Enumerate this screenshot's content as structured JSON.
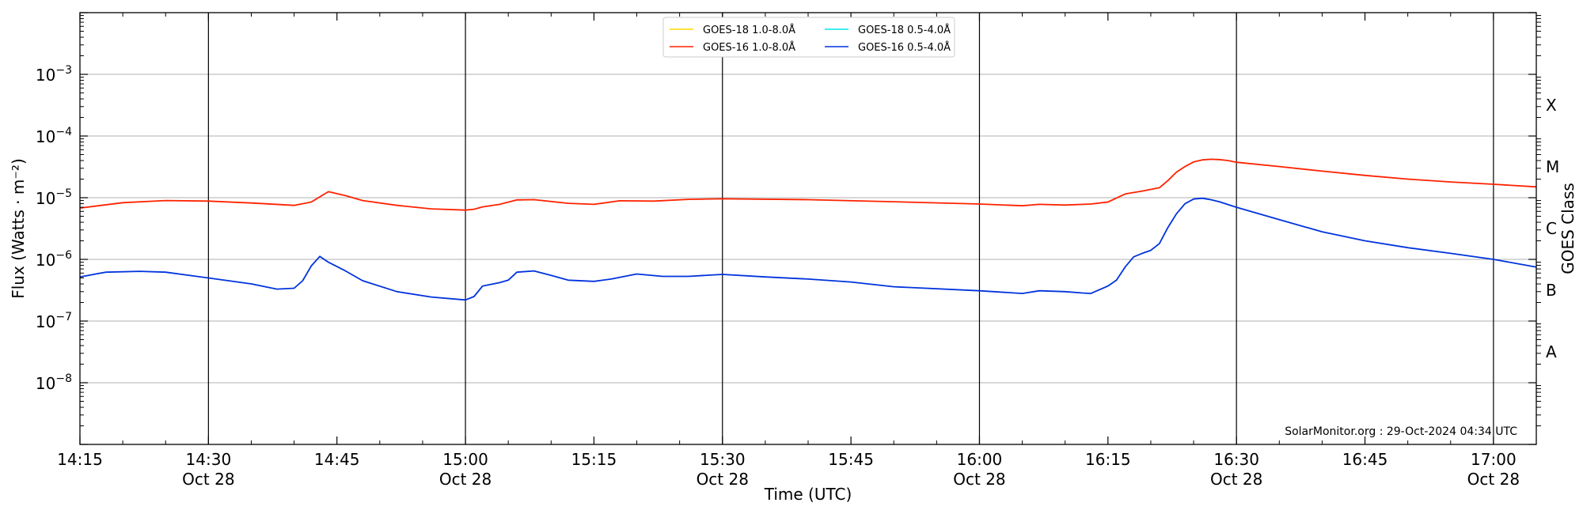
{
  "chart_data": {
    "type": "line",
    "xlabel": "Time (UTC)",
    "ylabel": "Flux (Watts · m⁻²)",
    "y2label": "GOES Class",
    "y_scale": "log",
    "ylim": [
      1e-09,
      0.01
    ],
    "xlim": [
      "14:15",
      "17:05"
    ],
    "grid": "horizontal at decades",
    "vertical_lines": [
      "14:30",
      "15:00",
      "15:30",
      "16:00",
      "16:30",
      "17:00"
    ],
    "legend_placement": "top-center",
    "credit": "SolarMonitor.org : 29-Oct-2024 04:34 UTC",
    "x_ticks": [
      {
        "time": "14:15",
        "label": "14:15",
        "date": ""
      },
      {
        "time": "14:30",
        "label": "14:30",
        "date": "Oct 28"
      },
      {
        "time": "14:45",
        "label": "14:45",
        "date": ""
      },
      {
        "time": "15:00",
        "label": "15:00",
        "date": "Oct 28"
      },
      {
        "time": "15:15",
        "label": "15:15",
        "date": ""
      },
      {
        "time": "15:30",
        "label": "15:30",
        "date": "Oct 28"
      },
      {
        "time": "15:45",
        "label": "15:45",
        "date": ""
      },
      {
        "time": "16:00",
        "label": "16:00",
        "date": "Oct 28"
      },
      {
        "time": "16:15",
        "label": "16:15",
        "date": ""
      },
      {
        "time": "16:30",
        "label": "16:30",
        "date": "Oct 28"
      },
      {
        "time": "16:45",
        "label": "16:45",
        "date": ""
      },
      {
        "time": "17:00",
        "label": "17:00",
        "date": "Oct 28"
      }
    ],
    "y_ticks": [
      {
        "value": 1e-08,
        "base": "10",
        "exp": "−8"
      },
      {
        "value": 1e-07,
        "base": "10",
        "exp": "−7"
      },
      {
        "value": 1e-06,
        "base": "10",
        "exp": "−6"
      },
      {
        "value": 1e-05,
        "base": "10",
        "exp": "−5"
      },
      {
        "value": 0.0001,
        "base": "10",
        "exp": "−4"
      },
      {
        "value": 0.001,
        "base": "10",
        "exp": "−3"
      }
    ],
    "goes_classes": [
      {
        "label": "A",
        "value": 3.16e-08
      },
      {
        "label": "B",
        "value": 3.16e-07
      },
      {
        "label": "C",
        "value": 3.16e-06
      },
      {
        "label": "M",
        "value": 3.16e-05
      },
      {
        "label": "X",
        "value": 0.000316
      }
    ],
    "series": [
      {
        "name": "GOES-18 1.0-8.0Å",
        "color": "#ffd700",
        "x": [],
        "y": []
      },
      {
        "name": "GOES-18 0.5-4.0Å",
        "color": "#00e5ee",
        "x": [],
        "y": []
      },
      {
        "name": "GOES-16 1.0-8.0Å",
        "color": "#ff2200",
        "x": [
          "14:15",
          "14:20",
          "14:25",
          "14:30",
          "14:35",
          "14:40",
          "14:42",
          "14:44",
          "14:46",
          "14:48",
          "14:52",
          "14:56",
          "15:00",
          "15:01",
          "15:02",
          "15:04",
          "15:06",
          "15:08",
          "15:12",
          "15:15",
          "15:18",
          "15:22",
          "15:26",
          "15:30",
          "15:40",
          "15:50",
          "16:00",
          "16:05",
          "16:07",
          "16:10",
          "16:13",
          "16:15",
          "16:17",
          "16:19",
          "16:21",
          "16:22",
          "16:23",
          "16:24",
          "16:25",
          "16:26",
          "16:27",
          "16:28",
          "16:29",
          "16:30",
          "16:35",
          "16:40",
          "16:45",
          "16:50",
          "16:55",
          "17:00",
          "17:05"
        ],
        "y": [
          6.8e-06,
          8.3e-06,
          9e-06,
          8.8e-06,
          8.2e-06,
          7.5e-06,
          8.5e-06,
          1.25e-05,
          1.08e-05,
          9e-06,
          7.5e-06,
          6.6e-06,
          6.3e-06,
          6.5e-06,
          7.1e-06,
          7.8e-06,
          9.2e-06,
          9.3e-06,
          8.1e-06,
          7.8e-06,
          8.9e-06,
          8.8e-06,
          9.4e-06,
          9.6e-06,
          9.3e-06,
          8.6e-06,
          7.9e-06,
          7.4e-06,
          7.8e-06,
          7.6e-06,
          7.9e-06,
          8.5e-06,
          1.15e-05,
          1.28e-05,
          1.45e-05,
          1.9e-05,
          2.6e-05,
          3.2e-05,
          3.8e-05,
          4.1e-05,
          4.2e-05,
          4.15e-05,
          4e-05,
          3.75e-05,
          3.2e-05,
          2.7e-05,
          2.3e-05,
          2e-05,
          1.8e-05,
          1.65e-05,
          1.5e-05
        ]
      },
      {
        "name": "GOES-16 0.5-4.0Å",
        "color": "#0033dd",
        "x": [
          "14:15",
          "14:18",
          "14:22",
          "14:25",
          "14:30",
          "14:35",
          "14:38",
          "14:40",
          "14:41",
          "14:42",
          "14:43",
          "14:44",
          "14:46",
          "14:48",
          "14:52",
          "14:56",
          "15:00",
          "15:01",
          "15:02",
          "15:04",
          "15:05",
          "15:06",
          "15:08",
          "15:10",
          "15:12",
          "15:15",
          "15:17",
          "15:20",
          "15:23",
          "15:26",
          "15:30",
          "15:35",
          "15:40",
          "15:45",
          "15:50",
          "16:00",
          "16:05",
          "16:07",
          "16:10",
          "16:12",
          "16:13",
          "16:15",
          "16:16",
          "16:17",
          "16:18",
          "16:19",
          "16:20",
          "16:21",
          "16:22",
          "16:23",
          "16:24",
          "16:25",
          "16:26",
          "16:27",
          "16:28",
          "16:30",
          "16:35",
          "16:40",
          "16:45",
          "16:50",
          "16:55",
          "17:00",
          "17:05"
        ],
        "y": [
          5.2e-07,
          6.2e-07,
          6.4e-07,
          6.2e-07,
          5e-07,
          4e-07,
          3.3e-07,
          3.4e-07,
          4.5e-07,
          7.8e-07,
          1.12e-06,
          9e-07,
          6.5e-07,
          4.5e-07,
          3e-07,
          2.45e-07,
          2.2e-07,
          2.5e-07,
          3.7e-07,
          4.2e-07,
          4.6e-07,
          6.2e-07,
          6.5e-07,
          5.5e-07,
          4.6e-07,
          4.4e-07,
          4.8e-07,
          5.8e-07,
          5.3e-07,
          5.3e-07,
          5.7e-07,
          5.2e-07,
          4.8e-07,
          4.3e-07,
          3.6e-07,
          3.1e-07,
          2.8e-07,
          3.1e-07,
          3e-07,
          2.85e-07,
          2.8e-07,
          3.7e-07,
          4.6e-07,
          7.5e-07,
          1.1e-06,
          1.25e-06,
          1.4e-06,
          1.8e-06,
          3.3e-06,
          5.5e-06,
          8e-06,
          9.5e-06,
          9.8e-06,
          9.3e-06,
          8.6e-06,
          7e-06,
          4.4e-06,
          2.8e-06,
          2e-06,
          1.55e-06,
          1.25e-06,
          1e-06,
          7.5e-07
        ]
      }
    ]
  }
}
